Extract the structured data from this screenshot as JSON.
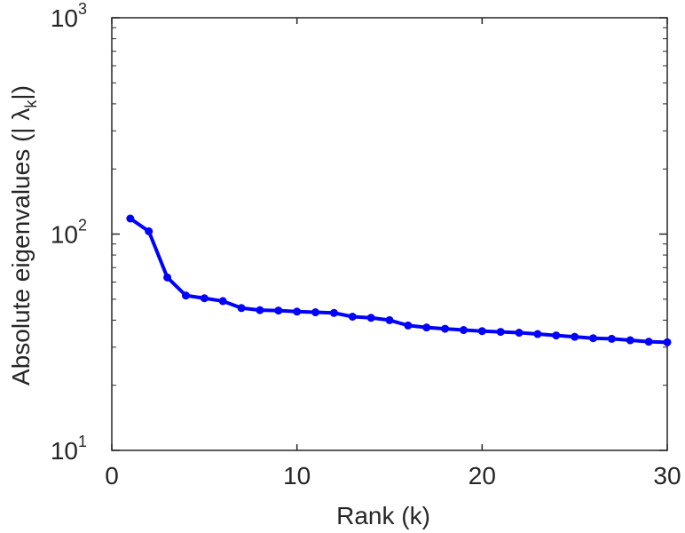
{
  "chart_data": {
    "type": "line",
    "title": "",
    "xlabel": "Rank (k)",
    "ylabel": "Absolute eigenvalues (|     λ",
    "ylabel_subscript": "k",
    "ylabel_end": "|)",
    "xlim": [
      0,
      30
    ],
    "ylim": [
      10,
      1000
    ],
    "yscale": "log",
    "x_ticks": [
      0,
      10,
      20,
      30
    ],
    "x_tick_labels": [
      "0",
      "10",
      "20",
      "30"
    ],
    "y_ticks": [
      {
        "value": 10,
        "base": "10",
        "exp": "1"
      },
      {
        "value": 100,
        "base": "10",
        "exp": "2"
      },
      {
        "value": 1000,
        "base": "10",
        "exp": "3"
      }
    ],
    "grid": false,
    "color": "#0000ff",
    "series": [
      {
        "x": [
          1,
          2,
          3,
          4,
          5,
          6,
          7,
          8,
          9,
          10,
          11,
          12,
          13,
          14,
          15,
          16,
          17,
          18,
          19,
          20,
          21,
          22,
          23,
          24,
          25,
          26,
          27,
          28,
          29,
          30
        ],
        "values": [
          118,
          103,
          63,
          52,
          50.5,
          49,
          45.5,
          44.5,
          44.3,
          43.8,
          43.5,
          43.2,
          41.5,
          41,
          40,
          37.8,
          37,
          36.5,
          36,
          35.6,
          35.3,
          35,
          34.5,
          34,
          33.5,
          33,
          32.8,
          32.3,
          31.8,
          31.6
        ]
      }
    ]
  }
}
